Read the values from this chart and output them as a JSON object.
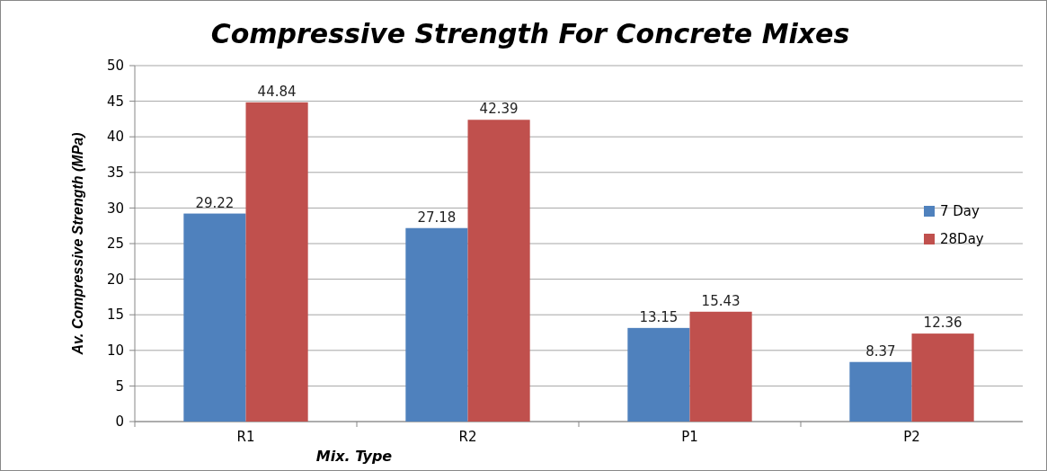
{
  "chart_data": {
    "type": "bar",
    "title": "Compressive Strength For Concrete Mixes",
    "xlabel": "Mix. Type",
    "ylabel": "Av. Compressive Strength (MPa)",
    "categories": [
      "R1",
      "R2",
      "P1",
      "P2"
    ],
    "series": [
      {
        "name": "7 Day",
        "color": "#4f81bd",
        "values": [
          29.22,
          27.18,
          13.15,
          8.37
        ]
      },
      {
        "name": "28Day",
        "color": "#c0504d",
        "values": [
          44.84,
          42.39,
          15.43,
          12.36
        ]
      }
    ],
    "ylim": [
      0,
      50
    ],
    "yticks": [
      0,
      5,
      10,
      15,
      20,
      25,
      30,
      35,
      40,
      45,
      50
    ],
    "grid": "y",
    "legend": "right",
    "data_labels": true
  }
}
